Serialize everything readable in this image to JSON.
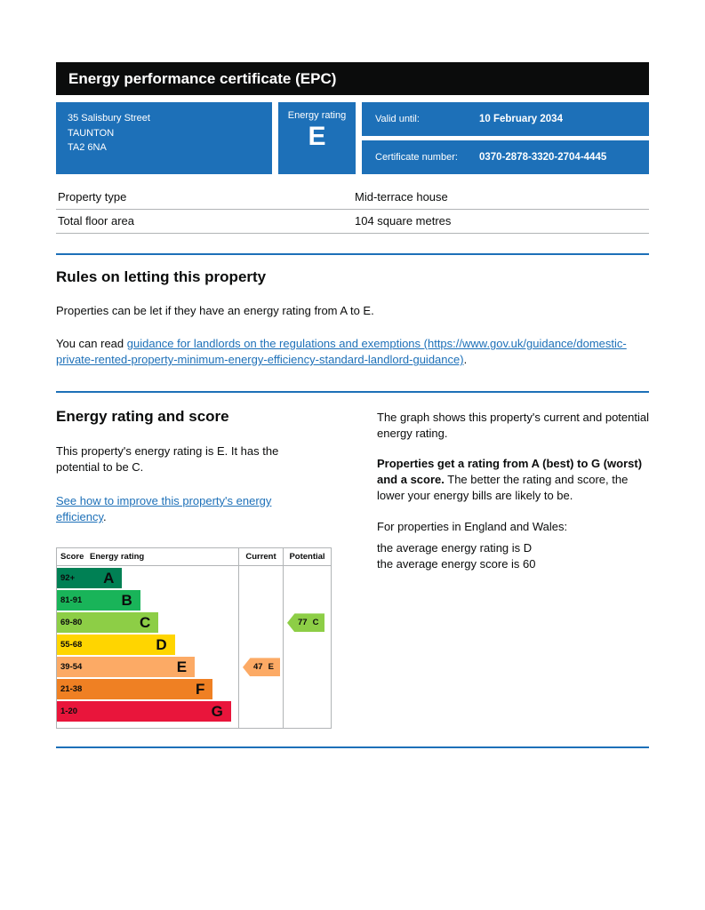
{
  "header": {
    "title": "Energy performance certificate (EPC)"
  },
  "summary": {
    "address_lines": [
      "35 Salisbury Street",
      "TAUNTON",
      "TA2 6NA"
    ],
    "energy_rating_label": "Energy rating",
    "energy_rating": "E",
    "valid_until_label": "Valid until:",
    "valid_until": "10 February 2034",
    "certificate_number_label": "Certificate number:",
    "certificate_number": "0370-2878-3320-2704-4445"
  },
  "property_table": {
    "rows": [
      {
        "label": "Property type",
        "value": "Mid-terrace house"
      },
      {
        "label": "Total floor area",
        "value": "104 square metres"
      }
    ]
  },
  "rules_section": {
    "heading": "Rules on letting this property",
    "paragraph1": "Properties can be let if they have an energy rating from A to E.",
    "paragraph2_prefix": "You can read ",
    "link_text": "guidance for landlords on the regulations and exemptions (https://www.gov.uk/guidance/domestic-private-rented-property-minimum-energy-efficiency-standard-landlord-guidance)",
    "paragraph2_suffix": "."
  },
  "rating_section": {
    "heading": "Energy rating and score",
    "paragraph1": "This property's energy rating is E. It has the potential to be C.",
    "improve_link_text": "See how to improve this property's energy efficiency",
    "improve_link_suffix": "."
  },
  "explanation": {
    "paragraph1": "The graph shows this property's current and potential energy rating.",
    "paragraph2_bold": "Properties get a rating from A (best) to G (worst) and a score.",
    "paragraph2_rest": " The better the rating and score, the lower your energy bills are likely to be.",
    "paragraph3": "For properties in England and Wales:",
    "average_rating_line": "the average energy rating is D",
    "average_score_line": "the average energy score is 60"
  },
  "chart_data": {
    "type": "bar",
    "title": "Energy rating and score",
    "columns": [
      "Score",
      "Energy rating",
      "Current",
      "Potential"
    ],
    "bands": [
      {
        "score": "92+",
        "letter": "A",
        "color": "#008054",
        "width_pct": 36
      },
      {
        "score": "81-91",
        "letter": "B",
        "color": "#19b459",
        "width_pct": 46
      },
      {
        "score": "69-80",
        "letter": "C",
        "color": "#8dce46",
        "width_pct": 56
      },
      {
        "score": "55-68",
        "letter": "D",
        "color": "#ffd500",
        "width_pct": 65
      },
      {
        "score": "39-54",
        "letter": "E",
        "color": "#fcaa65",
        "width_pct": 76
      },
      {
        "score": "21-38",
        "letter": "F",
        "color": "#ef8023",
        "width_pct": 86
      },
      {
        "score": "1-20",
        "letter": "G",
        "color": "#e9153b",
        "width_pct": 96
      }
    ],
    "current": {
      "value": 47,
      "letter": "E",
      "color": "#fcaa65",
      "band_index": 4
    },
    "potential": {
      "value": 77,
      "letter": "C",
      "color": "#8dce46",
      "band_index": 2
    }
  }
}
